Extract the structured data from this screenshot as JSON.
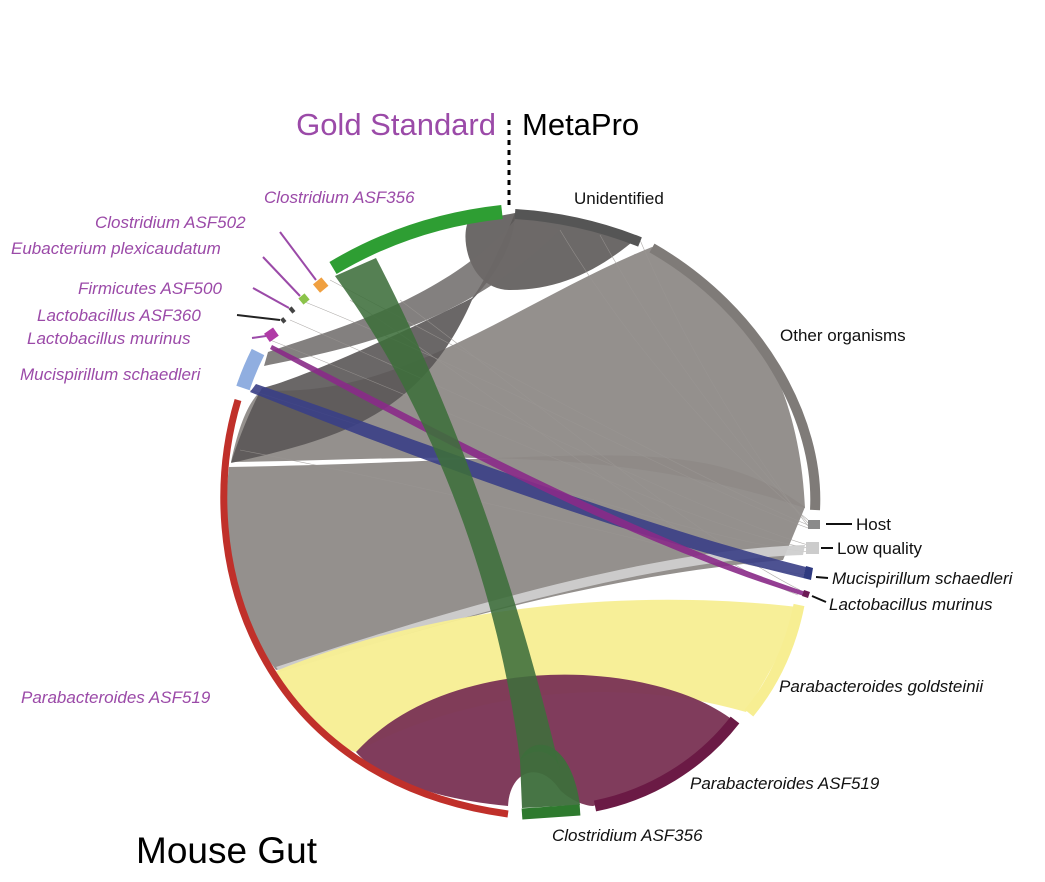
{
  "header": {
    "gold_standard": "Gold Standard",
    "metapro": "MetaPro"
  },
  "title": "Mouse Gut",
  "gold_standard_labels": {
    "clostridium_asf356": "Clostridium ASF356",
    "clostridium_asf502": "Clostridium ASF502",
    "eubacterium": "Eubacterium plexicaudatum",
    "firmicutes": "Firmicutes ASF500",
    "lactobacillus_asf360": "Lactobacillus ASF360",
    "lactobacillus_murinus": "Lactobacillus murinus",
    "mucispirillum": "Mucispirillum schaedleri",
    "parabacteroides": "Parabacteroides ASF519"
  },
  "metapro_labels": {
    "unidentified": "Unidentified",
    "other": "Other organisms",
    "host": "Host",
    "low_quality": "Low quality",
    "mucispirillum": "Mucispirillum schaedleri",
    "lactobacillus": "Lactobacillus murinus",
    "goldsteinii": "Parabacteroides goldsteinii",
    "parabacteroides": "Parabacteroides ASF519",
    "clostridium": "Clostridium ASF356"
  },
  "colors": {
    "gold_standard_text": "#9b4aa8",
    "clostridium": "#2e9e33",
    "clostridium_chord": "#3d6e3b",
    "clostridium_asf502": "#f0a040",
    "eubacterium": "#8bc34a",
    "lactobacillus_murinus": "#b03aa6",
    "mucispirillum_gs": "#90aee0",
    "mucispirillum_mp": "#2f3a80",
    "parabacteroides_gs": "#c0302a",
    "parabacteroides_mp": "#6b1a45",
    "parabacteroides_chord": "#7b3455",
    "goldsteinii": "#f7ee92",
    "unidentified": "#555555",
    "other": "#7f7b78",
    "other_chord": "#8e8a87",
    "host": "#8a8a8a",
    "low_quality": "#cccccc"
  }
}
